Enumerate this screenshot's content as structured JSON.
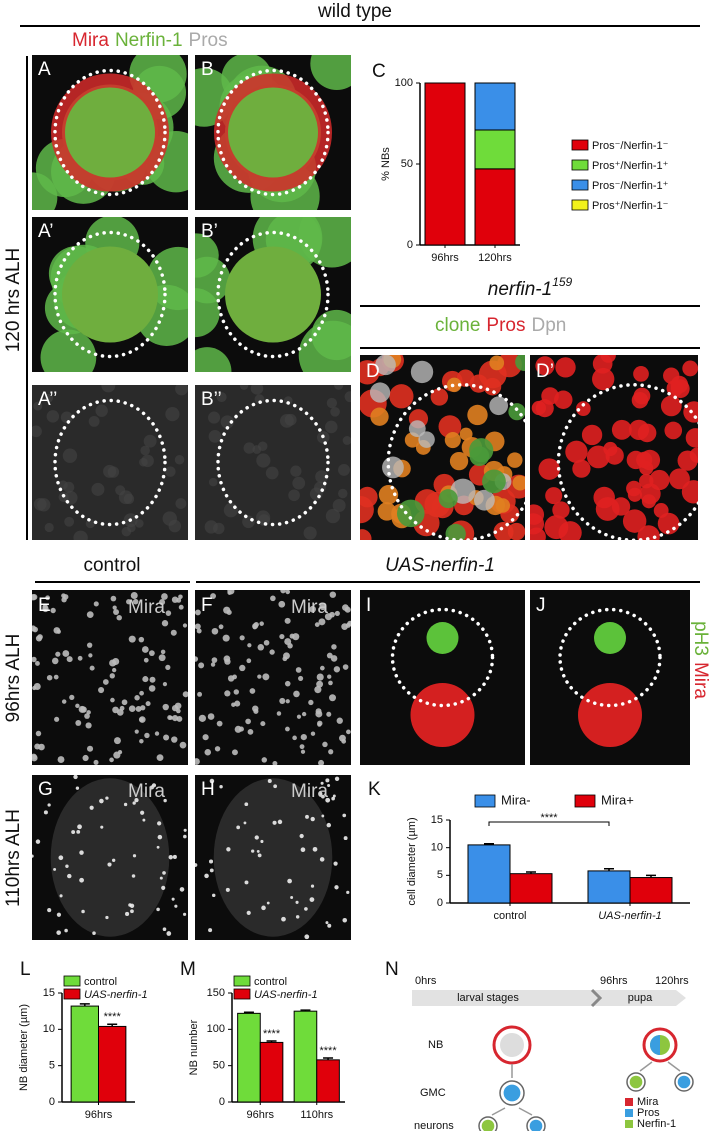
{
  "header": {
    "title": "wild type",
    "stain": [
      "Mira",
      "Nerfin-1",
      "Pros"
    ],
    "row_label": "120 hrs ALH"
  },
  "panel_letters": [
    "A",
    "B",
    "A’",
    "B’",
    "A’’",
    "B’’",
    "D",
    "D’",
    "E",
    "F",
    "G",
    "H",
    "I",
    "J",
    "N"
  ],
  "mutant": {
    "name": "nerfin-1",
    "superscript": "159",
    "stain": [
      "clone",
      "Pros",
      "Dpn"
    ]
  },
  "conditions": [
    "control",
    "UAS-nerfin-1"
  ],
  "image_labels": [
    "Mira",
    "Mira",
    "Mira",
    "Mira"
  ],
  "row_labels": [
    "96hrs ALH",
    "110hrs ALH"
  ],
  "ij_stain": [
    "pH3",
    "Mira"
  ],
  "schematic": {
    "times": [
      "0hrs",
      "96hrs",
      "120hrs"
    ],
    "stages": [
      "larval stages",
      "pupa"
    ],
    "rows": [
      "NB",
      "GMC",
      "neurons"
    ],
    "legend": [
      {
        "name": "Mira",
        "color": "#d7262f"
      },
      {
        "name": "Pros",
        "color": "#3a9ee0"
      },
      {
        "name": "Nerfin-1",
        "color": "#8dc63f"
      }
    ]
  },
  "chart_data": [
    {
      "type": "bar",
      "panel": "C",
      "stacked": true,
      "ylabel": "% NBs",
      "categories": [
        "96hrs",
        "120hrs"
      ],
      "series": [
        {
          "name": "Pros⁻/Nerfin-1⁻",
          "color": "#e0000b",
          "values": [
            100,
            47
          ]
        },
        {
          "name": "Pros⁺/Nerfin-1⁺",
          "color": "#6fdc3a",
          "values": [
            0,
            24
          ]
        },
        {
          "name": "Pros⁻/Nerfin-1⁺",
          "color": "#3a8fe8",
          "values": [
            0,
            29
          ]
        },
        {
          "name": "Pros⁺/Nerfin-1⁻",
          "color": "#f2f21a",
          "values": [
            0,
            0
          ]
        }
      ],
      "ylim": [
        0,
        100
      ],
      "yticks": [
        0,
        50,
        100
      ]
    },
    {
      "type": "bar",
      "panel": "K",
      "ylabel": "cell diameter (µm)",
      "categories": [
        "control",
        "UAS-nerfin-1"
      ],
      "series": [
        {
          "name": "Mira-",
          "color": "#3a8fe8",
          "values": [
            10.5,
            5.8
          ],
          "errors": [
            0.2,
            0.4
          ]
        },
        {
          "name": "Mira+",
          "color": "#e0000b",
          "values": [
            5.3,
            4.6
          ],
          "errors": [
            0.3,
            0.4
          ]
        }
      ],
      "annotations": [
        "****"
      ],
      "ylim": [
        0,
        15
      ],
      "yticks": [
        0,
        5,
        10,
        15
      ]
    },
    {
      "type": "bar",
      "panel": "L",
      "ylabel": "NB diameter (µm)",
      "categories": [
        "96hrs"
      ],
      "series": [
        {
          "name": "control",
          "color": "#6fdc3a",
          "values": [
            13.2
          ],
          "errors": [
            0.3
          ]
        },
        {
          "name": "UAS-nerfin-1",
          "color": "#e0000b",
          "values": [
            10.4
          ],
          "errors": [
            0.3
          ]
        }
      ],
      "annotations": [
        "****"
      ],
      "ylim": [
        0,
        15
      ],
      "yticks": [
        0,
        5,
        10,
        15
      ]
    },
    {
      "type": "bar",
      "panel": "M",
      "ylabel": "NB number",
      "categories": [
        "96hrs",
        "110hrs"
      ],
      "series": [
        {
          "name": "control",
          "color": "#6fdc3a",
          "values": [
            122,
            125
          ],
          "errors": [
            1.5,
            1.5
          ]
        },
        {
          "name": "UAS-nerfin-1",
          "color": "#e0000b",
          "values": [
            82,
            58
          ],
          "errors": [
            2,
            2.5
          ]
        }
      ],
      "annotations": [
        "****",
        "****"
      ],
      "ylim": [
        0,
        150
      ],
      "yticks": [
        0,
        50,
        100,
        150
      ]
    }
  ]
}
